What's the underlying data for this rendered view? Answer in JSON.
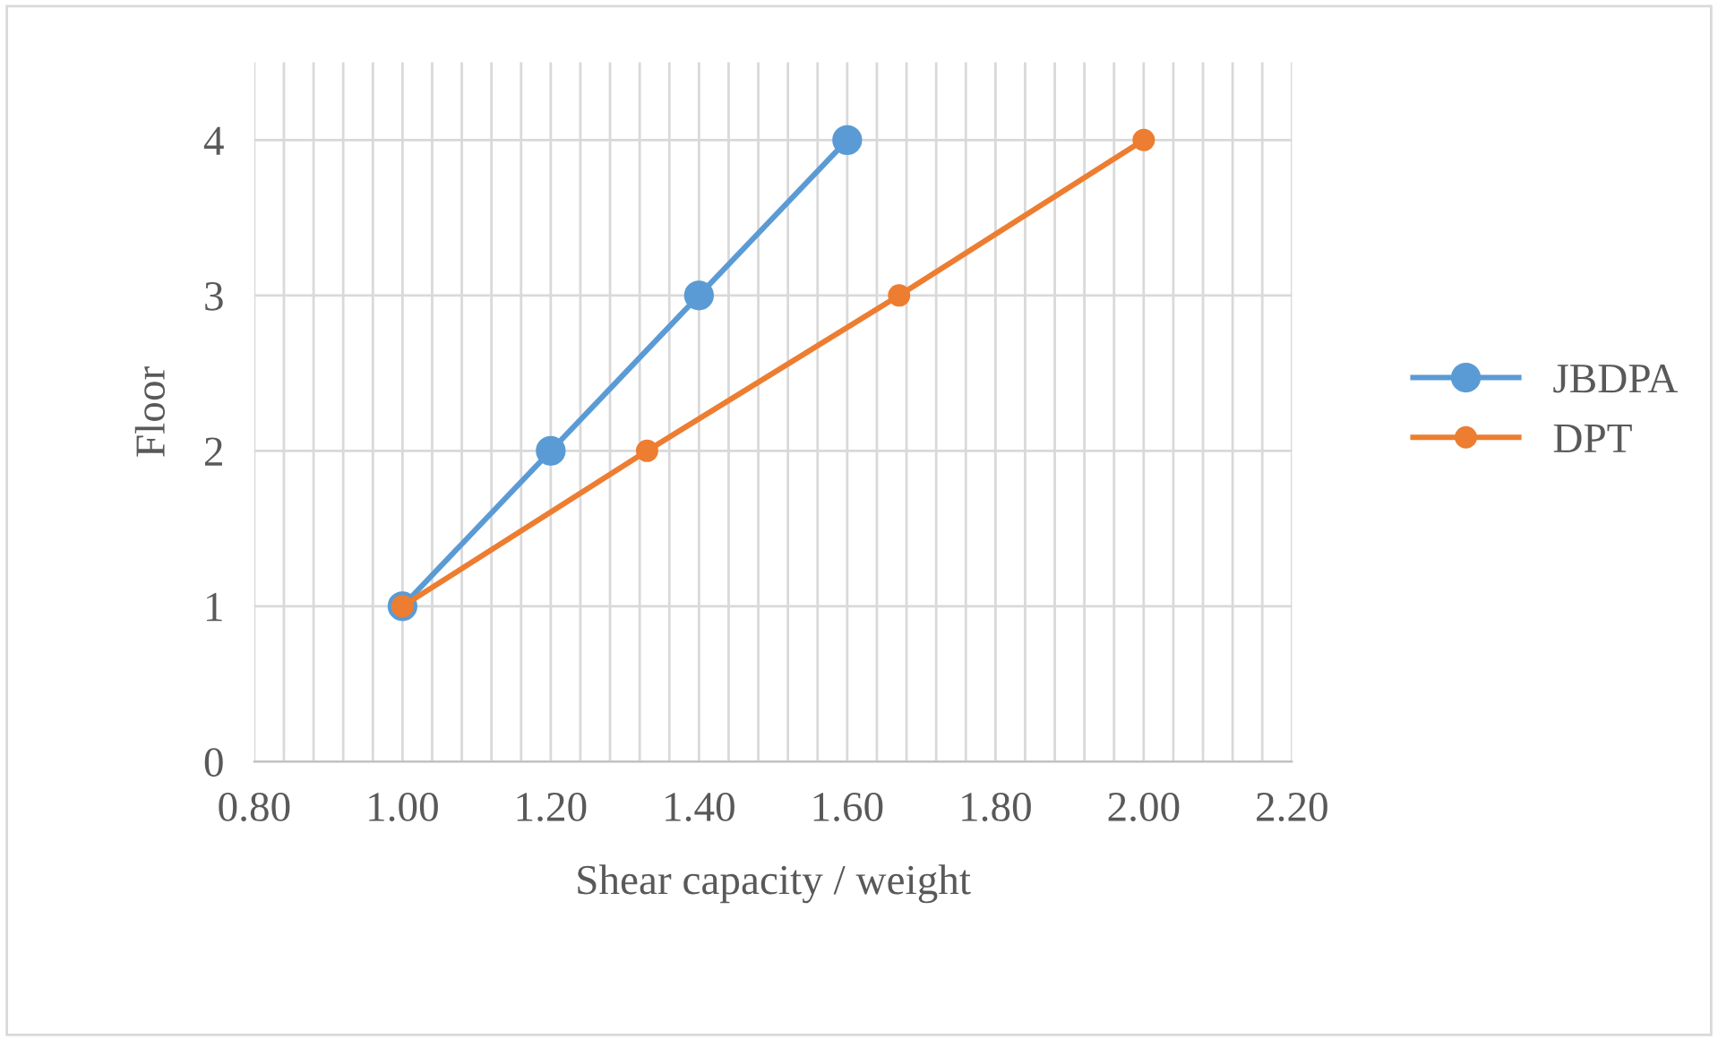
{
  "chart_data": {
    "type": "line",
    "xlabel": "Shear capacity / weight",
    "ylabel": "Floor",
    "series": [
      {
        "name": "JBDPA",
        "color": "#5b9bd5",
        "x": [
          1.0,
          1.2,
          1.4,
          1.6
        ],
        "values": [
          1,
          2,
          3,
          4
        ]
      },
      {
        "name": "DPT",
        "color": "#ed7d31",
        "x": [
          1.0,
          1.33,
          1.67,
          2.0
        ],
        "values": [
          1,
          2,
          3,
          4
        ]
      }
    ],
    "xlim": [
      0.8,
      2.2
    ],
    "xticks": [
      {
        "value": 0.8,
        "label": "0.80"
      },
      {
        "value": 0.84,
        "label": null
      },
      {
        "value": 0.88,
        "label": null
      },
      {
        "value": 0.92,
        "label": null
      },
      {
        "value": 0.96,
        "label": null
      },
      {
        "value": 1.0,
        "label": "1.00"
      },
      {
        "value": 1.04,
        "label": null
      },
      {
        "value": 1.08,
        "label": null
      },
      {
        "value": 1.12,
        "label": null
      },
      {
        "value": 1.16,
        "label": null
      },
      {
        "value": 1.2,
        "label": "1.20"
      },
      {
        "value": 1.24,
        "label": null
      },
      {
        "value": 1.28,
        "label": null
      },
      {
        "value": 1.32,
        "label": null
      },
      {
        "value": 1.36,
        "label": null
      },
      {
        "value": 1.4,
        "label": "1.40"
      },
      {
        "value": 1.44,
        "label": null
      },
      {
        "value": 1.48,
        "label": null
      },
      {
        "value": 1.52,
        "label": null
      },
      {
        "value": 1.56,
        "label": null
      },
      {
        "value": 1.6,
        "label": "1.60"
      },
      {
        "value": 1.64,
        "label": null
      },
      {
        "value": 1.68,
        "label": null
      },
      {
        "value": 1.72,
        "label": null
      },
      {
        "value": 1.76,
        "label": null
      },
      {
        "value": 1.8,
        "label": "1.80"
      },
      {
        "value": 1.84,
        "label": null
      },
      {
        "value": 1.88,
        "label": null
      },
      {
        "value": 1.92,
        "label": null
      },
      {
        "value": 1.96,
        "label": null
      },
      {
        "value": 2.0,
        "label": "2.00"
      },
      {
        "value": 2.04,
        "label": null
      },
      {
        "value": 2.08,
        "label": null
      },
      {
        "value": 2.12,
        "label": null
      },
      {
        "value": 2.16,
        "label": null
      },
      {
        "value": 2.2,
        "label": "2.20"
      }
    ],
    "ylim": [
      0,
      4.5
    ],
    "yticks": [
      0,
      1,
      2,
      3,
      4
    ],
    "grid": true,
    "legend": "right",
    "marker": "circle",
    "line_style": "solid"
  }
}
